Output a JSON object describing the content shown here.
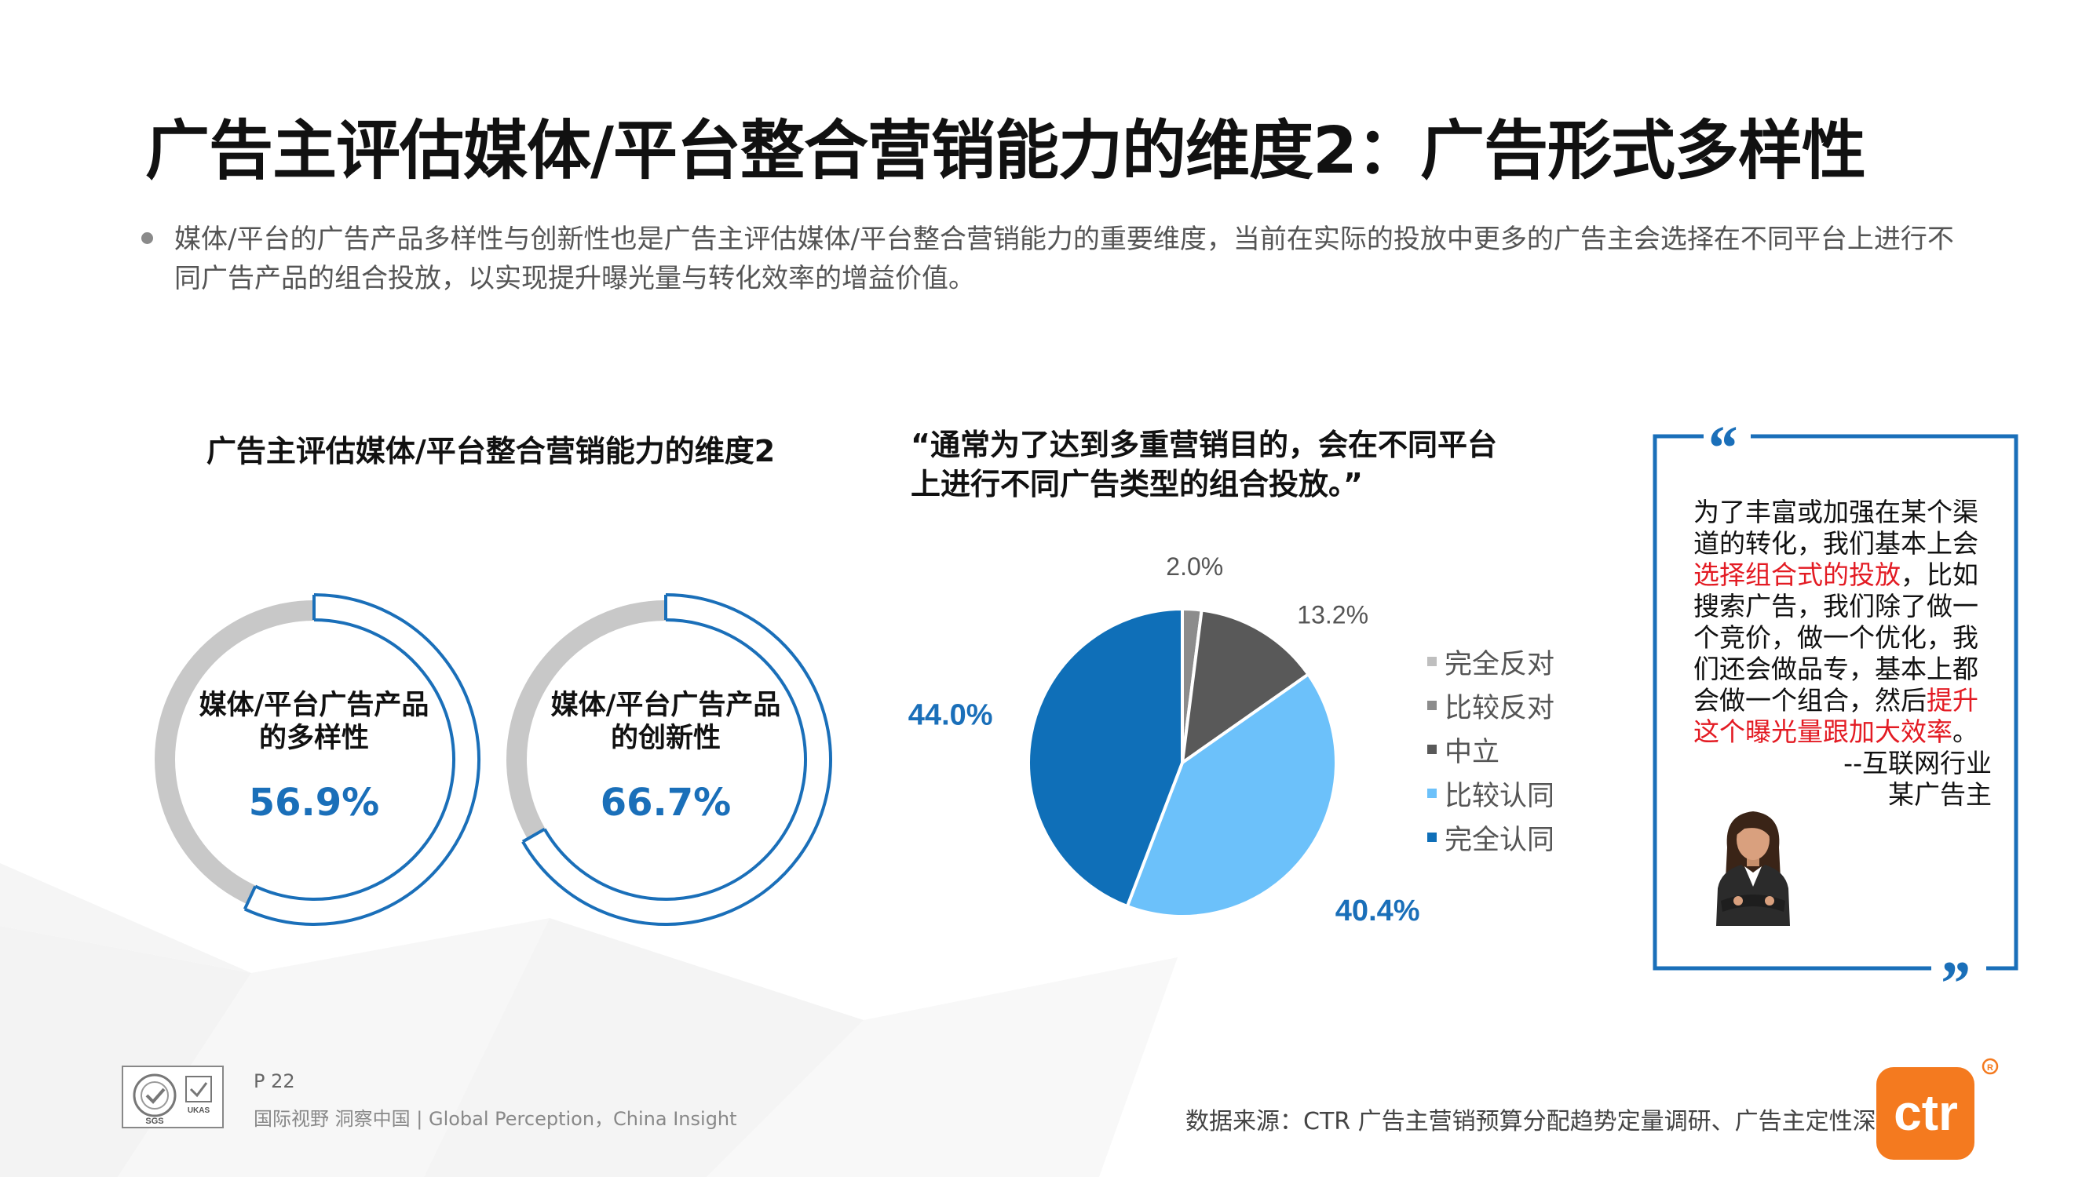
{
  "title": "广告主评估媒体/平台整合营销能力的维度2：广告形式多样性",
  "intro": "媒体/平台的广告产品多样性与创新性也是广告主评估媒体/平台整合营销能力的重要维度，当前在实际的投放中更多的广告主会选择在不同平台上进行不同广告产品的组合投放，以实现提升曝光量与转化效率的增益价值。",
  "left_heading": "广告主评估媒体/平台整合营销能力的维度2",
  "quote_heading_line1": "“通常为了达到多重营销目的，会在不同平台",
  "quote_heading_line2": "上进行不同广告类型的组合投放。”",
  "quote_box": {
    "open_mark": "“",
    "close_mark": "”",
    "segment1": "为了丰富或加强在某个渠道的转化，我们基本上会",
    "highlight1": "选择组合式的投放",
    "segment2": "，比如搜索广告，我们除了做一个竞价，做一个优化，我们还会做品专，基本上都会做一个组合，然后",
    "highlight2": "提升这个曝光量跟加大效率",
    "segment3": "。",
    "attribution1": "--互联网行业",
    "attribution2": "某广告主"
  },
  "footer": {
    "page": "P 22",
    "slogan": "国际视野  洞察中国 |  Global Perception，China Insight",
    "source": "数据来源：CTR 广告主营销预算分配趋势定量调研、广告主定性深访",
    "logo_text": "ctr",
    "cert_text": "SGS",
    "cert_text2": "UKAS"
  },
  "colors": {
    "accent": "#1a6fb9",
    "ring_gray": "#c8c8c8",
    "highlight": "#e31b23"
  },
  "chart_data": [
    {
      "type": "pie",
      "variant": "ring",
      "label_line1": "媒体/平台广告产品",
      "label_line2": "的多样性",
      "value": 56.9,
      "value_label": "56.9%"
    },
    {
      "type": "pie",
      "variant": "ring",
      "label_line1": "媒体/平台广告产品",
      "label_line2": "的创新性",
      "value": 66.7,
      "value_label": "66.7%"
    },
    {
      "type": "pie",
      "legend_position": "right",
      "categories": [
        "完全反对",
        "比较反对",
        "中立",
        "比较认同",
        "完全认同"
      ],
      "values": [
        0,
        2.0,
        13.2,
        40.4,
        44.0
      ],
      "labels": [
        "",
        "2.0%",
        "13.2%",
        "40.4%",
        "44.0%"
      ],
      "colors": [
        "#bfbfbf",
        "#8c8c8c",
        "#595959",
        "#6cc1fa",
        "#0f6fb8"
      ]
    }
  ]
}
